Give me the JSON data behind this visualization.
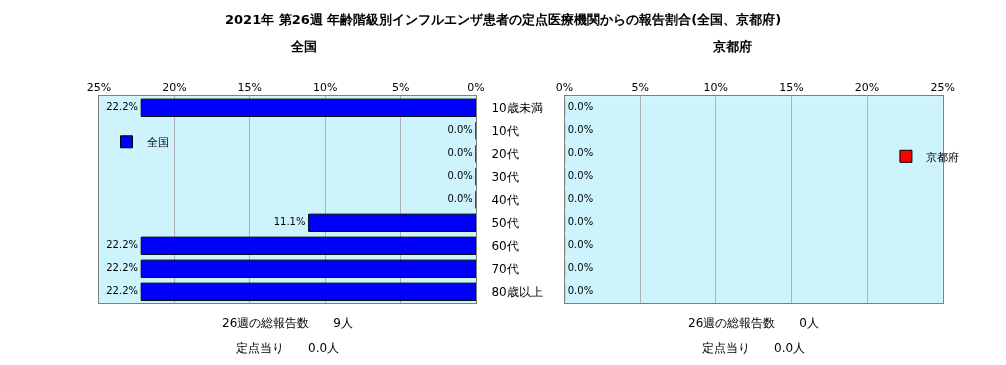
{
  "chart_data": [
    {
      "type": "bar",
      "orientation": "horizontal",
      "title": "2021年 第26週 年齢階級別インフルエンザ患者の定点医療機関からの報告割合(全国、京都府)",
      "subtitle": "全国",
      "categories": [
        "10歳未満",
        "10代",
        "20代",
        "30代",
        "40代",
        "50代",
        "60代",
        "70代",
        "80歳以上"
      ],
      "series": [
        {
          "name": "全国",
          "color": "#0000ff",
          "values": [
            22.2,
            0.0,
            0.0,
            0.0,
            0.0,
            11.1,
            22.2,
            22.2,
            22.2
          ],
          "value_labels": [
            "22.2%",
            "0.0%",
            "0.0%",
            "0.0%",
            "0.0%",
            "11.1%",
            "22.2%",
            "22.2%",
            "22.2%"
          ]
        }
      ],
      "xlim": [
        25,
        0
      ],
      "xticks": [
        {
          "value": 25,
          "label": "25%"
        },
        {
          "value": 20,
          "label": "20%"
        },
        {
          "value": 15,
          "label": "15%"
        },
        {
          "value": 10,
          "label": "10%"
        },
        {
          "value": 5,
          "label": "5%"
        },
        {
          "value": 0,
          "label": "0%"
        }
      ],
      "grid": "x",
      "legend": "top left",
      "annotations": [
        "26週の総報告数　　9人",
        "定点当り　　0.0人"
      ]
    },
    {
      "type": "bar",
      "orientation": "horizontal",
      "title": "京都府",
      "series": [
        {
          "name": "京都府",
          "color": "#ff0000",
          "values": [
            0.0,
            0.0,
            0.0,
            0.0,
            0.0,
            0.0,
            0.0,
            0.0,
            0.0
          ],
          "value_labels": [
            "0.0%",
            "0.0%",
            "0.0%",
            "0.0%",
            "0.0%",
            "0.0%",
            "0.0%",
            "0.0%",
            "0.0%"
          ]
        }
      ],
      "xlim": [
        0,
        25
      ],
      "xticks": [
        {
          "value": 0,
          "label": "0%"
        },
        {
          "value": 5,
          "label": "5%"
        },
        {
          "value": 10,
          "label": "10%"
        },
        {
          "value": 15,
          "label": "15%"
        },
        {
          "value": 20,
          "label": "20%"
        },
        {
          "value": 25,
          "label": "25%"
        }
      ],
      "grid": "x",
      "legend": "right",
      "tick_labels": "x",
      "annotations": [
        "26週の総報告数　　0人",
        "定点当り　　0.0人"
      ]
    }
  ]
}
